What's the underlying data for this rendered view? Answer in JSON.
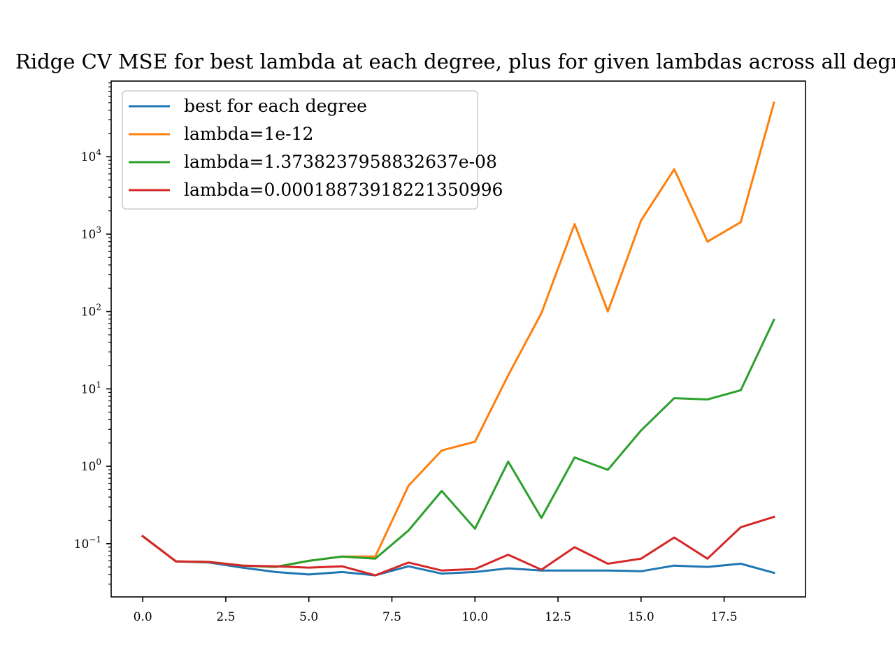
{
  "chart_data": {
    "type": "line",
    "title": "Ridge CV MSE for best lambda at each degree, plus for given lambdas across all degrees",
    "xlabel": "",
    "ylabel": "",
    "yscale": "log",
    "xlim": [
      -0.95,
      19.95
    ],
    "ylim": [
      0.0205,
      95000
    ],
    "x_ticks": [
      0.0,
      2.5,
      5.0,
      7.5,
      10.0,
      12.5,
      15.0,
      17.5
    ],
    "x_tick_labels": [
      "0.0",
      "2.5",
      "5.0",
      "7.5",
      "10.0",
      "12.5",
      "15.0",
      "17.5"
    ],
    "y_ticks": [
      {
        "value": 0.1,
        "base": "10",
        "exp": "−1"
      },
      {
        "value": 1,
        "base": "10",
        "exp": "0"
      },
      {
        "value": 10,
        "base": "10",
        "exp": "1"
      },
      {
        "value": 100,
        "base": "10",
        "exp": "2"
      },
      {
        "value": 1000,
        "base": "10",
        "exp": "3"
      },
      {
        "value": 10000,
        "base": "10",
        "exp": "4"
      }
    ],
    "grid": false,
    "legend_position": "top-left",
    "x": [
      0,
      1,
      2,
      3,
      4,
      5,
      6,
      7,
      8,
      9,
      10,
      11,
      12,
      13,
      14,
      15,
      16,
      17,
      18,
      19
    ],
    "series": [
      {
        "name": "best for each degree",
        "color": "#1f77b4",
        "values": [
          0.125,
          0.059,
          0.057,
          0.049,
          0.043,
          0.04,
          0.043,
          0.039,
          0.051,
          0.041,
          0.043,
          0.048,
          0.045,
          0.045,
          0.045,
          0.044,
          0.052,
          0.05,
          0.055,
          0.042
        ]
      },
      {
        "name": "lambda=1e-12",
        "color": "#ff7f0e",
        "values": [
          0.125,
          0.059,
          0.058,
          0.052,
          0.05,
          0.06,
          0.068,
          0.068,
          0.56,
          1.6,
          2.08,
          15.0,
          95.0,
          1350,
          100,
          1500,
          6900,
          800,
          1430,
          50000
        ]
      },
      {
        "name": "lambda=1.3738237958832637e-08",
        "color": "#2ca02c",
        "values": [
          0.125,
          0.059,
          0.058,
          0.052,
          0.05,
          0.06,
          0.068,
          0.064,
          0.148,
          0.48,
          0.156,
          1.15,
          0.215,
          1.3,
          0.9,
          2.9,
          7.6,
          7.3,
          9.6,
          78
        ]
      },
      {
        "name": "lambda=0.00018873918221350996",
        "color": "#d62728",
        "values": [
          0.125,
          0.059,
          0.058,
          0.052,
          0.051,
          0.049,
          0.051,
          0.039,
          0.057,
          0.045,
          0.047,
          0.072,
          0.046,
          0.09,
          0.055,
          0.064,
          0.12,
          0.064,
          0.163,
          0.222
        ]
      }
    ]
  }
}
